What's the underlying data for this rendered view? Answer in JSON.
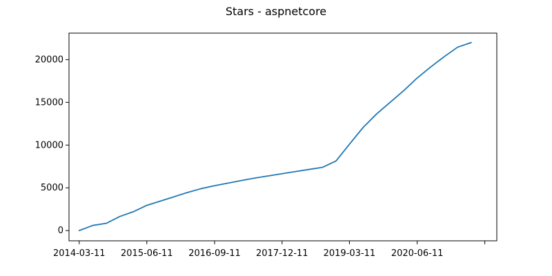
{
  "chart_data": {
    "type": "line",
    "title": "Stars - aspnetcore",
    "xlabel": "",
    "ylabel": "",
    "x_tick_labels": [
      "2014-03-11",
      "2015-06-11",
      "2016-09-11",
      "2017-12-11",
      "2019-03-11",
      "2020-06-11",
      ""
    ],
    "y_tick_labels": [
      "0",
      "5000",
      "10000",
      "15000",
      "20000"
    ],
    "y_ticks": [
      0,
      5000,
      10000,
      15000,
      20000
    ],
    "ylim": [
      -1200,
      23100
    ],
    "xlim": [
      "2014-01-01",
      "2021-12-01"
    ],
    "grid": false,
    "legend": "none",
    "colors": {
      "line": "#1f77b4",
      "axes": "#000000",
      "background": "#ffffff"
    },
    "series": [
      {
        "x": [
          "2014-03-11",
          "2014-06-11",
          "2014-09-11",
          "2014-12-11",
          "2015-03-11",
          "2015-06-11",
          "2015-09-11",
          "2015-12-11",
          "2016-03-11",
          "2016-06-11",
          "2016-09-11",
          "2016-12-11",
          "2017-03-11",
          "2017-06-11",
          "2017-09-11",
          "2017-12-11",
          "2018-03-11",
          "2018-06-11",
          "2018-09-11",
          "2018-12-11",
          "2019-03-11",
          "2019-06-11",
          "2019-09-11",
          "2019-12-11",
          "2020-03-11",
          "2020-06-11",
          "2020-09-11",
          "2020-12-11",
          "2021-03-11",
          "2021-06-11"
        ],
        "values": [
          0,
          600,
          850,
          1650,
          2200,
          2950,
          3450,
          3950,
          4450,
          4900,
          5250,
          5550,
          5850,
          6150,
          6400,
          6650,
          6900,
          7150,
          7400,
          8150,
          10100,
          12050,
          13650,
          15000,
          16350,
          17850,
          19150,
          20350,
          21450,
          22000
        ]
      }
    ]
  }
}
